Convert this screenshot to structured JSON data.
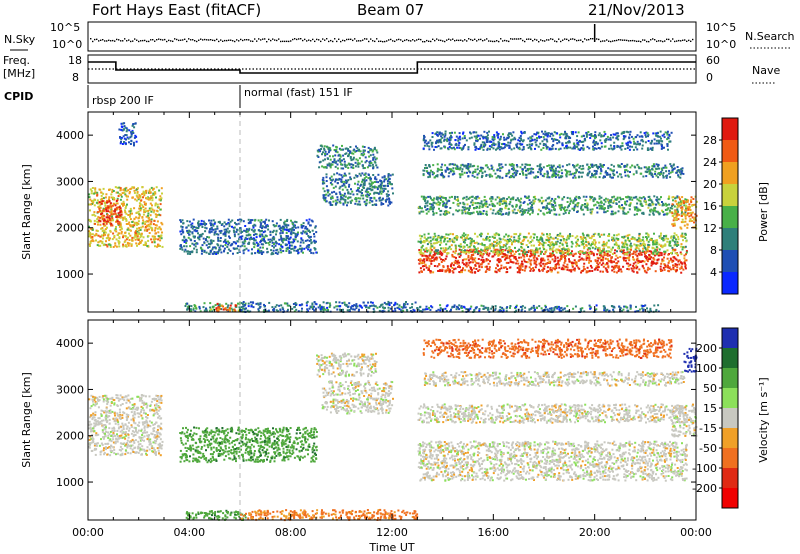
{
  "header": {
    "title": "Fort Hays East (fitACF)",
    "beam": "Beam 07",
    "date": "21/Nov/2013"
  },
  "strip_labels": {
    "nsky": "N.Sky",
    "nsearch": "N.Search",
    "freq_line1": "Freq.",
    "freq_line2": "[MHz]",
    "nave": "Nave",
    "cpid": "CPID",
    "noise_ticks": [
      "10^5",
      "10^0"
    ],
    "freq_ticks": [
      "18",
      "8"
    ],
    "nave_ticks": [
      "60",
      "0"
    ]
  },
  "cpid_segments": [
    {
      "label": "rbsp 200 IF",
      "start_hour": 0
    },
    {
      "label": "normal (fast) 151 IF",
      "start_hour": 6
    }
  ],
  "chart_data": [
    {
      "type": "heatmap",
      "name": "power-panel",
      "ylabel": "Slant Range [km]",
      "xlabel": "",
      "ylim": [
        180,
        4500
      ],
      "xlim_hours": [
        0,
        24
      ],
      "yticks": [
        1000,
        2000,
        3000,
        4000
      ],
      "colorbar": {
        "label": "Power [dB]",
        "ticks": [
          4,
          8,
          12,
          16,
          20,
          24,
          28
        ],
        "colors": [
          "#0a28ff",
          "#1f4fb4",
          "#2f7f7a",
          "#48b048",
          "#c8d23c",
          "#f0a020",
          "#f05a14",
          "#e01a10"
        ]
      },
      "regions": [
        {
          "t0": 0.0,
          "t1": 2.9,
          "r0": 1600,
          "r1": 2900,
          "level": 20
        },
        {
          "t0": 0.4,
          "t1": 1.3,
          "r0": 2100,
          "r1": 2600,
          "level": 28
        },
        {
          "t0": 1.2,
          "t1": 1.9,
          "r0": 3800,
          "r1": 4300,
          "level": 6
        },
        {
          "t0": 3.6,
          "t1": 9.0,
          "r0": 1450,
          "r1": 2200,
          "level": 8
        },
        {
          "t0": 3.8,
          "t1": 6.2,
          "r0": 200,
          "r1": 400,
          "level": 12
        },
        {
          "t0": 5.0,
          "t1": 5.8,
          "r0": 200,
          "r1": 380,
          "level": 26
        },
        {
          "t0": 6.0,
          "t1": 13.0,
          "r0": 200,
          "r1": 420,
          "level": 8
        },
        {
          "t0": 9.0,
          "t1": 11.4,
          "r0": 3300,
          "r1": 3800,
          "level": 10
        },
        {
          "t0": 9.2,
          "t1": 12.0,
          "r0": 2500,
          "r1": 3200,
          "level": 9
        },
        {
          "t0": 13.0,
          "t1": 23.6,
          "r0": 1050,
          "r1": 1550,
          "level": 28
        },
        {
          "t0": 13.0,
          "t1": 23.6,
          "r0": 1450,
          "r1": 1900,
          "level": 16
        },
        {
          "t0": 13.0,
          "t1": 23.6,
          "r0": 2300,
          "r1": 2700,
          "level": 12
        },
        {
          "t0": 13.2,
          "t1": 23.5,
          "r0": 3100,
          "r1": 3400,
          "level": 10
        },
        {
          "t0": 13.2,
          "t1": 23.0,
          "r0": 3700,
          "r1": 4100,
          "level": 8
        },
        {
          "t0": 23.0,
          "t1": 24.0,
          "r0": 2000,
          "r1": 2700,
          "level": 22
        },
        {
          "t0": 13.0,
          "t1": 22.5,
          "r0": 200,
          "r1": 350,
          "level": 8
        }
      ]
    },
    {
      "type": "heatmap",
      "name": "velocity-panel",
      "ylabel": "Slant Range [km]",
      "xlabel": "Time UT",
      "ylim": [
        180,
        4500
      ],
      "xlim_hours": [
        0,
        24
      ],
      "yticks": [
        1000,
        2000,
        3000,
        4000
      ],
      "xticks": [
        "00:00",
        "04:00",
        "08:00",
        "12:00",
        "16:00",
        "20:00",
        "00:00"
      ],
      "colorbar": {
        "label": "Velocity [m s⁻¹]",
        "ticks": [
          200,
          100,
          50,
          15,
          -15,
          -50,
          -100,
          -200
        ],
        "colors": [
          "#1f2fb0",
          "#1f6e2f",
          "#4fa83c",
          "#8ce05a",
          "#c8c8c0",
          "#f0a028",
          "#f07020",
          "#e02a14",
          "#f00000"
        ]
      },
      "regions": [
        {
          "t0": 0.0,
          "t1": 2.9,
          "r0": 1600,
          "r1": 2900,
          "vel": 0
        },
        {
          "t0": 3.6,
          "t1": 9.0,
          "r0": 1450,
          "r1": 2200,
          "vel": 60
        },
        {
          "t0": 3.8,
          "t1": 6.2,
          "r0": 200,
          "r1": 400,
          "vel": 60
        },
        {
          "t0": 6.0,
          "t1": 13.0,
          "r0": 200,
          "r1": 420,
          "vel": -40
        },
        {
          "t0": 9.0,
          "t1": 11.4,
          "r0": 3300,
          "r1": 3800,
          "vel": 0
        },
        {
          "t0": 9.2,
          "t1": 12.0,
          "r0": 2500,
          "r1": 3200,
          "vel": 0
        },
        {
          "t0": 13.0,
          "t1": 23.6,
          "r0": 1050,
          "r1": 1900,
          "vel": 0
        },
        {
          "t0": 13.0,
          "t1": 23.6,
          "r0": 2300,
          "r1": 2700,
          "vel": 0
        },
        {
          "t0": 13.2,
          "t1": 23.5,
          "r0": 3100,
          "r1": 3400,
          "vel": 0
        },
        {
          "t0": 13.2,
          "t1": 23.0,
          "r0": 3700,
          "r1": 4100,
          "vel": -60
        },
        {
          "t0": 23.5,
          "t1": 24.0,
          "r0": 3400,
          "r1": 3900,
          "vel": 220
        },
        {
          "t0": 23.0,
          "t1": 24.0,
          "r0": 2000,
          "r1": 2700,
          "vel": 0
        }
      ]
    }
  ]
}
